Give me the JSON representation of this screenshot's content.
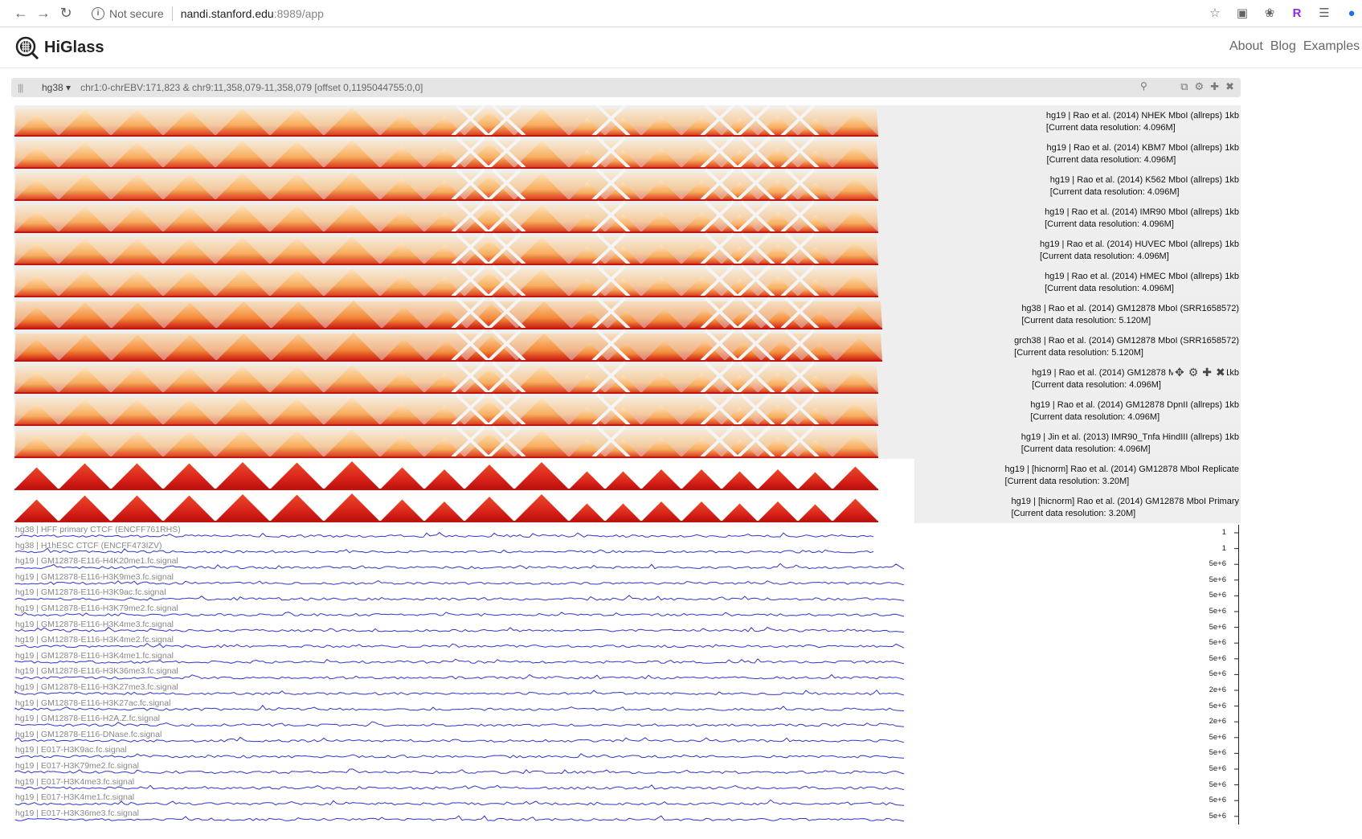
{
  "browser": {
    "security_text": "Not secure",
    "url_host": "nandi.stanford.edu",
    "url_port": ":8989/app"
  },
  "app": {
    "brand": "HiGlass",
    "nav": [
      "About",
      "Blog",
      "Examples"
    ]
  },
  "view": {
    "assembly": "hg38 ▾",
    "locus": "chr1:0-chrEBV:171,823 & chr9:11,358,079-11,358,079 [offset 0,1195044755:0,0]"
  },
  "heatmaps": [
    {
      "name": "hg19 | Rao et al. (2014) NHEK MboI (allreps) 1kb",
      "resolution": "[Current data resolution: 4.096M]",
      "style": "light"
    },
    {
      "name": "hg19 | Rao et al. (2014) KBM7 MboI (allreps) 1kb",
      "resolution": "[Current data resolution: 4.096M]",
      "style": "light"
    },
    {
      "name": "hg19 | Rao et al. (2014) K562 MboI (allreps) 1kb",
      "resolution": "[Current data resolution: 4.096M]",
      "style": "light"
    },
    {
      "name": "hg19 | Rao et al. (2014) IMR90 MboI (allreps) 1kb",
      "resolution": "[Current data resolution: 4.096M]",
      "style": "light"
    },
    {
      "name": "hg19 | Rao et al. (2014) HUVEC MboI (allreps) 1kb",
      "resolution": "[Current data resolution: 4.096M]",
      "style": "light"
    },
    {
      "name": "hg19 | Rao et al. (2014) HMEC MboI (allreps) 1kb",
      "resolution": "[Current data resolution: 4.096M]",
      "style": "light"
    },
    {
      "name": "hg38 | Rao et al. (2014) GM12878 MboI (SRR1658572)",
      "resolution": "[Current data resolution: 5.120M]",
      "style": "medium"
    },
    {
      "name": "grch38 | Rao et al. (2014) GM12878 MboI (SRR1658572)",
      "resolution": "[Current data resolution: 5.120M]",
      "style": "medium"
    },
    {
      "name": "hg19 | Rao et al. (2014) GM12878 MboI (allreps) 1kb",
      "resolution": "[Current data resolution: 4.096M]",
      "style": "light"
    },
    {
      "name": "hg19 | Rao et al. (2014) GM12878 DpnII (allreps) 1kb",
      "resolution": "[Current data resolution: 4.096M]",
      "style": "light"
    },
    {
      "name": "hg19 | Jin et al. (2013) IMR90_Tnfa HindIII (allreps) 1kb",
      "resolution": "[Current data resolution: 4.096M]",
      "style": "light"
    },
    {
      "name": "hg19 | [hicnorm] Rao et al. (2014) GM12878 MboI Replicate",
      "resolution": "[Current data resolution: 3.20M]",
      "style": "dark"
    },
    {
      "name": "hg19 | [hicnorm] Rao et al. (2014) GM12878 MboI Primary",
      "resolution": "[Current data resolution: 3.20M]",
      "style": "dark"
    }
  ],
  "line_tracks": [
    {
      "name": "hg38 | HFF primary CTCF (ENCFF761RHS)",
      "max": "1",
      "long": false
    },
    {
      "name": "hg38 | H1hESC CTCF (ENCFF473IZV)",
      "max": "1",
      "long": false
    },
    {
      "name": "hg19 | GM12878-E116-H4K20me1.fc.signal",
      "max": "5e+6",
      "long": true
    },
    {
      "name": "hg19 | GM12878-E116-H3K9me3.fc.signal",
      "max": "5e+6",
      "long": true
    },
    {
      "name": "hg19 | GM12878-E116-H3K9ac.fc.signal",
      "max": "5e+6",
      "long": true
    },
    {
      "name": "hg19 | GM12878-E116-H3K79me2.fc.signal",
      "max": "5e+6",
      "long": true
    },
    {
      "name": "hg19 | GM12878-E116-H3K4me3.fc.signal",
      "max": "5e+6",
      "long": true
    },
    {
      "name": "hg19 | GM12878-E116-H3K4me2.fc.signal",
      "max": "5e+6",
      "long": true
    },
    {
      "name": "hg19 | GM12878-E116-H3K4me1.fc.signal",
      "max": "5e+6",
      "long": true
    },
    {
      "name": "hg19 | GM12878-E116-H3K36me3.fc.signal",
      "max": "5e+6",
      "long": true
    },
    {
      "name": "hg19 | GM12878-E116-H3K27me3.fc.signal",
      "max": "2e+6",
      "long": true
    },
    {
      "name": "hg19 | GM12878-E116-H3K27ac.fc.signal",
      "max": "5e+6",
      "long": true
    },
    {
      "name": "hg19 | GM12878-E116-H2A.Z.fc.signal",
      "max": "2e+6",
      "long": true
    },
    {
      "name": "hg19 | GM12878-E116-DNase.fc.signal",
      "max": "5e+6",
      "long": true
    },
    {
      "name": "hg19 | E017-H3K9ac.fc.signal",
      "max": "5e+6",
      "long": true
    },
    {
      "name": "hg19 | E017-H3K79me2.fc.signal",
      "max": "5e+6",
      "long": true
    },
    {
      "name": "hg19 | E017-H3K4me3.fc.signal",
      "max": "5e+6",
      "long": true
    },
    {
      "name": "hg19 | E017-H3K4me1.fc.signal",
      "max": "5e+6",
      "long": true
    },
    {
      "name": "hg19 | E017-H3K36me3.fc.signal",
      "max": "5e+6",
      "long": true
    }
  ],
  "colors": {
    "heat_light": "#fce3b8",
    "heat_mid": "#f7a04c",
    "heat_dark": "#d11a12",
    "line": "#3333cc"
  }
}
